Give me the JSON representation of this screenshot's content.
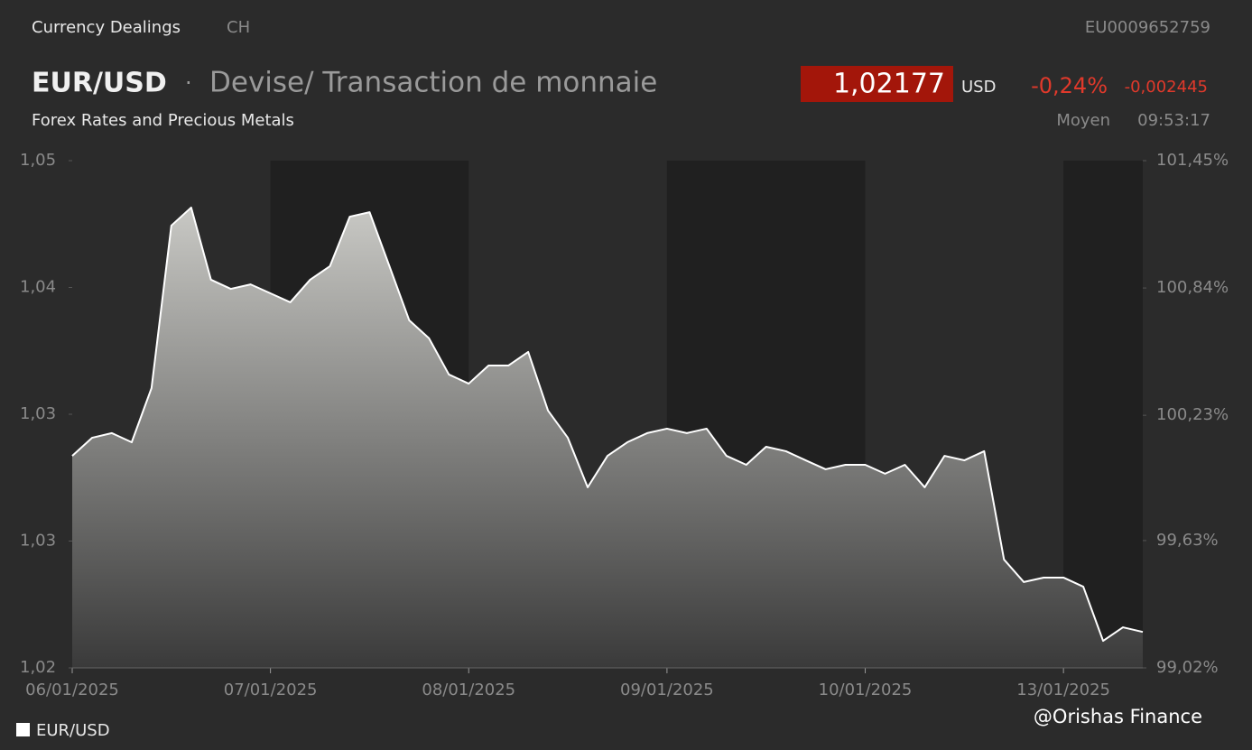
{
  "header": {
    "source": "Currency Dealings",
    "country": "CH",
    "isin": "EU0009652759",
    "instrument": "EUR/USD",
    "separator": "·",
    "description": "Devise/ Transaction de monnaie",
    "subtitle": "Forex Rates and Precious Metals",
    "price": "1,02177",
    "currency": "USD",
    "change_pct": "-0,24%",
    "change_abs": "-0,002445",
    "price_type": "Moyen",
    "time": "09:53:17"
  },
  "watermark": "@Orishas Finance",
  "chart_data": {
    "type": "area",
    "categories": [
      "06/01/2025",
      null,
      null,
      null,
      null,
      null,
      null,
      null,
      null,
      null,
      "07/01/2025",
      null,
      null,
      null,
      null,
      null,
      null,
      null,
      null,
      null,
      "08/01/2025",
      null,
      null,
      null,
      null,
      null,
      null,
      null,
      null,
      null,
      "09/01/2025",
      null,
      null,
      null,
      null,
      null,
      null,
      null,
      null,
      null,
      "10/01/2025",
      null,
      null,
      null,
      null,
      null,
      null,
      null,
      null,
      null,
      "13/01/2025",
      null,
      null,
      null,
      null
    ],
    "series": [
      {
        "name": "EUR/USD",
        "color": "#ffffff",
        "values": [
          1.03045,
          1.03134,
          1.03157,
          1.03112,
          1.03379,
          1.0418,
          1.04269,
          1.03913,
          1.03868,
          1.0389,
          1.03846,
          1.03802,
          1.03913,
          1.0398,
          1.04224,
          1.04246,
          1.0398,
          1.03713,
          1.03624,
          1.03446,
          1.03401,
          1.0349,
          1.0349,
          1.03557,
          1.03268,
          1.03134,
          1.0289,
          1.03045,
          1.03112,
          1.03157,
          1.03179,
          1.03157,
          1.03179,
          1.03045,
          1.03001,
          1.0309,
          1.03068,
          1.03023,
          1.02979,
          1.03001,
          1.03001,
          1.02957,
          1.03001,
          1.0289,
          1.03045,
          1.03023,
          1.03068,
          1.02534,
          1.02423,
          1.02445,
          1.02445,
          1.024,
          1.02133,
          1.022,
          1.02177
        ]
      }
    ],
    "ylim": [
      1.02,
      1.045
    ],
    "yticks": [
      {
        "value": 1.02,
        "label": "1,02"
      },
      {
        "value": 1.02625,
        "label": "1,03"
      },
      {
        "value": 1.0325,
        "label": "1,03"
      },
      {
        "value": 1.03875,
        "label": "1,04"
      },
      {
        "value": 1.045,
        "label": "1,05"
      }
    ],
    "y2lim": [
      99.02,
      101.45
    ],
    "y2ticks": [
      {
        "value": 99.02,
        "label": "99,02%"
      },
      {
        "value": 99.63,
        "label": "99,63%"
      },
      {
        "value": 100.23,
        "label": "100,23%"
      },
      {
        "value": 100.84,
        "label": "100,84%"
      },
      {
        "value": 101.45,
        "label": "101,45%"
      }
    ],
    "legend": "bottom-left"
  }
}
